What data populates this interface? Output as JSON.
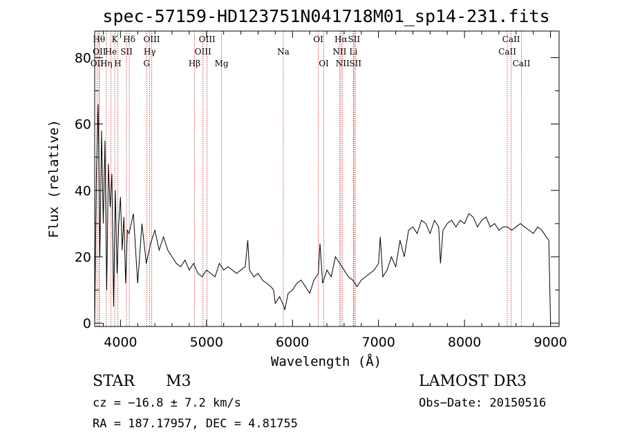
{
  "chart_data": {
    "type": "line",
    "title": "spec-57159-HD123751N041718M01_sp14-231.fits",
    "xlabel": "Wavelength (Å)",
    "ylabel": "Flux (relative)",
    "xlim": [
      3700,
      9100
    ],
    "ylim": [
      -1,
      88
    ],
    "x_ticks": [
      4000,
      5000,
      6000,
      7000,
      8000,
      9000
    ],
    "y_ticks": [
      0,
      20,
      40,
      60,
      80
    ],
    "grid": false,
    "line_color": "#000000",
    "marker_color": "#cc2222",
    "series": [
      {
        "x": [
          3700,
          3720,
          3740,
          3760,
          3780,
          3800,
          3820,
          3840,
          3860,
          3880,
          3900,
          3920,
          3940,
          3960,
          3980,
          4000,
          4020,
          4040,
          4060,
          4080,
          4100,
          4150,
          4200,
          4250,
          4300,
          4350,
          4400,
          4450,
          4500,
          4550,
          4600,
          4650,
          4700,
          4750,
          4800,
          4850,
          4900,
          4950,
          5000,
          5050,
          5100,
          5150,
          5200,
          5250,
          5300,
          5350,
          5400,
          5450,
          5480,
          5500,
          5550,
          5600,
          5650,
          5700,
          5750,
          5780,
          5800,
          5850,
          5900,
          5910,
          5950,
          6000,
          6050,
          6100,
          6150,
          6200,
          6250,
          6300,
          6320,
          6350,
          6400,
          6450,
          6500,
          6550,
          6600,
          6650,
          6700,
          6750,
          6800,
          6850,
          6900,
          6950,
          7000,
          7020,
          7050,
          7100,
          7150,
          7200,
          7250,
          7300,
          7350,
          7400,
          7450,
          7500,
          7550,
          7600,
          7650,
          7700,
          7720,
          7750,
          7800,
          7850,
          7900,
          7950,
          8000,
          8050,
          8100,
          8150,
          8200,
          8250,
          8300,
          8350,
          8400,
          8450,
          8500,
          8550,
          8600,
          8650,
          8700,
          8750,
          8800,
          8850,
          8900,
          8950,
          8980,
          9000
        ],
        "values": [
          0,
          45,
          66,
          20,
          58,
          30,
          55,
          10,
          48,
          35,
          45,
          5,
          40,
          15,
          30,
          38,
          22,
          32,
          12,
          28,
          27,
          33,
          12,
          30,
          18,
          24,
          28,
          22,
          26,
          22,
          20,
          18,
          17,
          19,
          16,
          18,
          15,
          14,
          16,
          15,
          14,
          18,
          16,
          17,
          16,
          15,
          16,
          17,
          25,
          16,
          14,
          15,
          13,
          12,
          11,
          10,
          6,
          8,
          5,
          4,
          9,
          10,
          12,
          13,
          11,
          9,
          13,
          15,
          24,
          12,
          16,
          14,
          20,
          18,
          16,
          14,
          13,
          11,
          13,
          14,
          15,
          16,
          18,
          26,
          14,
          16,
          20,
          17,
          25,
          20,
          28,
          29,
          27,
          31,
          30,
          27,
          31,
          29,
          18,
          28,
          30,
          31,
          29,
          31,
          30,
          33,
          32,
          29,
          31,
          32,
          29,
          30,
          28,
          29,
          29,
          28,
          29,
          30,
          29,
          28,
          27,
          29,
          28,
          26,
          25,
          0
        ]
      }
    ],
    "spectral_lines": [
      {
        "label": "OII",
        "x": 3727,
        "row": 2
      },
      {
        "label": "Hθ",
        "x": 3750,
        "row": 0
      },
      {
        "label": "OII",
        "x": 3755,
        "row": 1
      },
      {
        "label": "Hη",
        "x": 3835,
        "row": 2
      },
      {
        "label": "He",
        "x": 3889,
        "row": 1
      },
      {
        "label": "K",
        "x": 3934,
        "row": 0
      },
      {
        "label": "H",
        "x": 3969,
        "row": 2
      },
      {
        "label": "SII",
        "x": 4070,
        "row": 1
      },
      {
        "label": "Hδ",
        "x": 4102,
        "row": 0
      },
      {
        "label": "OIII",
        "x": 4363,
        "row": 0
      },
      {
        "label": "Hγ",
        "x": 4340,
        "row": 1
      },
      {
        "label": "G",
        "x": 4304,
        "row": 2
      },
      {
        "label": "Hβ",
        "x": 4861,
        "row": 2
      },
      {
        "label": "OIII",
        "x": 4959,
        "row": 1
      },
      {
        "label": "OIII",
        "x": 5007,
        "row": 0
      },
      {
        "label": "Mg",
        "x": 5175,
        "row": 2
      },
      {
        "label": "Na",
        "x": 5893,
        "row": 1
      },
      {
        "label": "OI",
        "x": 6300,
        "row": 0
      },
      {
        "label": "OI",
        "x": 6364,
        "row": 2
      },
      {
        "label": "NII",
        "x": 6548,
        "row": 1
      },
      {
        "label": "Hα",
        "x": 6563,
        "row": 0
      },
      {
        "label": "NII",
        "x": 6583,
        "row": 2
      },
      {
        "label": "Li",
        "x": 6708,
        "row": 1
      },
      {
        "label": "SII",
        "x": 6716,
        "row": 0
      },
      {
        "label": "SII",
        "x": 6731,
        "row": 2
      },
      {
        "label": "CaII",
        "x": 8498,
        "row": 1
      },
      {
        "label": "CaII",
        "x": 8542,
        "row": 0
      },
      {
        "label": "CaII",
        "x": 8662,
        "row": 2
      }
    ]
  },
  "info": {
    "object_class": "STAR",
    "subclass": "M3",
    "survey": "LAMOST DR3",
    "redshift": "cz = −16.8 ± 7.2 km/s",
    "obs_date": "Obs−Date: 20150516",
    "coords": "RA = 187.17957, DEC =   4.81755"
  }
}
